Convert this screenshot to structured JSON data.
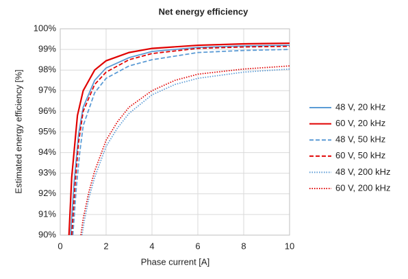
{
  "chart_data": {
    "type": "line",
    "title": "Net energy efficiency",
    "xlabel": "Phase current [A]",
    "ylabel": "Estimated energy efficiency [%]",
    "xlim": [
      0,
      10
    ],
    "xticks": [
      0,
      2,
      4,
      6,
      8,
      10
    ],
    "ylim": [
      90,
      100
    ],
    "yticks": [
      {
        "value": 90,
        "label": "90%"
      },
      {
        "value": 91,
        "label": "91%"
      },
      {
        "value": 92,
        "label": "92%"
      },
      {
        "value": 93,
        "label": "93%"
      },
      {
        "value": 94,
        "label": "94%"
      },
      {
        "value": 95,
        "label": "95%"
      },
      {
        "value": 96,
        "label": "96%"
      },
      {
        "value": 97,
        "label": "97%"
      },
      {
        "value": 98,
        "label": "98%"
      },
      {
        "value": 99,
        "label": "99%"
      },
      {
        "value": 100,
        "label": "100%"
      }
    ],
    "grid": true,
    "legend": "right",
    "series": [
      {
        "name": "48 V, 20 kHz",
        "color": "#5b9bd5",
        "dash": "solid",
        "x": [
          0.45,
          0.6,
          0.8,
          1,
          1.5,
          2,
          3,
          4,
          6,
          8,
          10
        ],
        "values": [
          90,
          92.5,
          94.9,
          96.2,
          97.5,
          98.1,
          98.6,
          98.9,
          99.1,
          99.17,
          99.2
        ]
      },
      {
        "name": "60 V, 20 kHz",
        "color": "#e00000",
        "dash": "solid",
        "x": [
          0.38,
          0.5,
          0.75,
          1,
          1.5,
          2,
          3,
          4,
          6,
          8,
          10
        ],
        "values": [
          90,
          92.8,
          95.8,
          97.0,
          98.0,
          98.45,
          98.85,
          99.05,
          99.2,
          99.27,
          99.3
        ]
      },
      {
        "name": "48 V, 50 kHz",
        "color": "#5b9bd5",
        "dash": "dashed",
        "x": [
          0.55,
          0.7,
          0.85,
          1,
          1.5,
          2,
          3,
          4,
          6,
          8,
          10
        ],
        "values": [
          90,
          92.3,
          94.0,
          95.3,
          96.9,
          97.6,
          98.2,
          98.5,
          98.85,
          98.95,
          99.0
        ]
      },
      {
        "name": "60 V, 50 kHz",
        "color": "#e00000",
        "dash": "dashed",
        "x": [
          0.5,
          0.65,
          0.8,
          1,
          1.5,
          2,
          3,
          4,
          6,
          8,
          10
        ],
        "values": [
          90,
          92.5,
          94.5,
          96.0,
          97.3,
          97.9,
          98.5,
          98.8,
          99.05,
          99.12,
          99.15
        ]
      },
      {
        "name": "48 V, 200 kHz",
        "color": "#5b9bd5",
        "dash": "dotted",
        "x": [
          0.95,
          1.05,
          1.25,
          1.5,
          2,
          2.5,
          3,
          4,
          5,
          6,
          8,
          10
        ],
        "values": [
          90,
          90.7,
          91.8,
          92.8,
          94.3,
          95.2,
          95.9,
          96.8,
          97.3,
          97.6,
          97.9,
          98.05
        ]
      },
      {
        "name": "60 V, 200 kHz",
        "color": "#e00000",
        "dash": "dotted",
        "x": [
          0.9,
          1,
          1.25,
          1.5,
          2,
          2.5,
          3,
          4,
          5,
          6,
          8,
          10
        ],
        "values": [
          90,
          90.8,
          92.1,
          93.1,
          94.6,
          95.5,
          96.2,
          97.0,
          97.5,
          97.8,
          98.05,
          98.2
        ]
      }
    ]
  }
}
